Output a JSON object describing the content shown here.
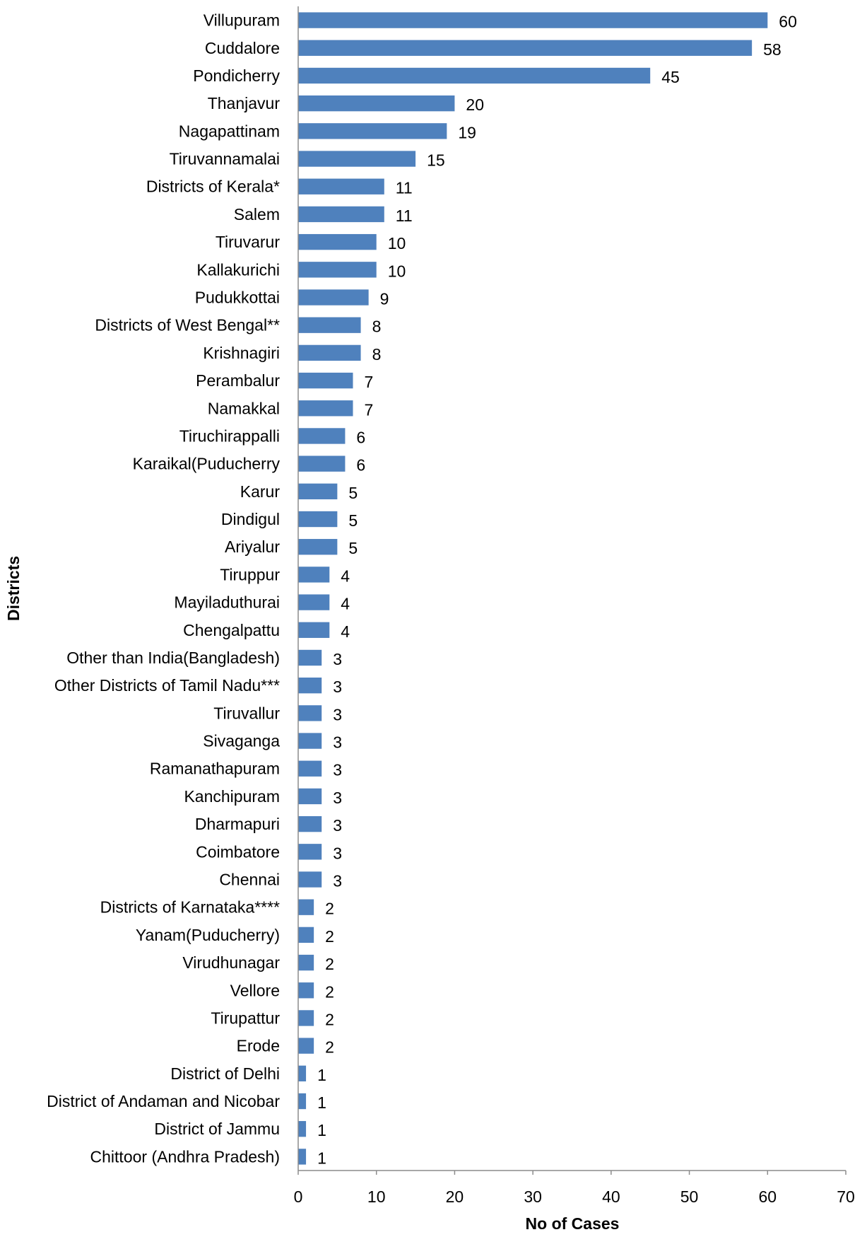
{
  "chart_data": {
    "type": "bar",
    "orientation": "horizontal",
    "title": "",
    "xlabel": "No of Cases",
    "ylabel": "Districts",
    "xlim": [
      0,
      70
    ],
    "xticks": [
      0,
      10,
      20,
      30,
      40,
      50,
      60,
      70
    ],
    "grid": false,
    "bar_color": "#4F81BD",
    "categories": [
      "Villupuram",
      "Cuddalore",
      "Pondicherry",
      "Thanjavur",
      "Nagapattinam",
      "Tiruvannamalai",
      "Districts of Kerala*",
      "Salem",
      "Tiruvarur",
      "Kallakurichi",
      "Pudukkottai",
      "Districts of West Bengal**",
      "Krishnagiri",
      "Perambalur",
      "Namakkal",
      "Tiruchirappalli",
      "Karaikal(Puducherry",
      "Karur",
      "Dindigul",
      "Ariyalur",
      "Tiruppur",
      "Mayiladuthurai",
      "Chengalpattu",
      "Other than India(Bangladesh)",
      "Other Districts of Tamil Nadu***",
      "Tiruvallur",
      "Sivaganga",
      "Ramanathapuram",
      "Kanchipuram",
      "Dharmapuri",
      "Coimbatore",
      "Chennai",
      "Districts of Karnataka****",
      "Yanam(Puducherry)",
      "Virudhunagar",
      "Vellore",
      "Tirupattur",
      "Erode",
      "District of Delhi",
      "District of Andaman and Nicobar",
      "District of Jammu",
      "Chittoor (Andhra Pradesh)"
    ],
    "values": [
      60,
      58,
      45,
      20,
      19,
      15,
      11,
      11,
      10,
      10,
      9,
      8,
      8,
      7,
      7,
      6,
      6,
      5,
      5,
      5,
      4,
      4,
      4,
      3,
      3,
      3,
      3,
      3,
      3,
      3,
      3,
      3,
      2,
      2,
      2,
      2,
      2,
      2,
      1,
      1,
      1,
      1
    ]
  }
}
